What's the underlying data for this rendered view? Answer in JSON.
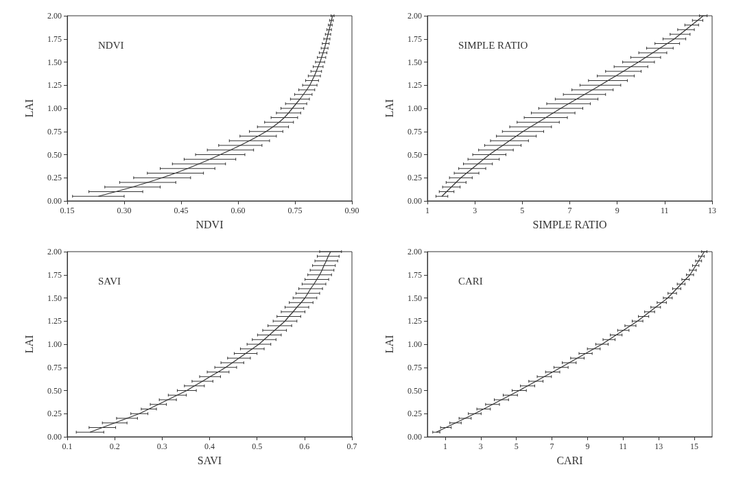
{
  "chart_data": [
    {
      "type": "line",
      "title": "NDVI",
      "xlabel": "NDVI",
      "ylabel": "LAI",
      "color": "#333333",
      "x": [
        0.232,
        0.278,
        0.322,
        0.362,
        0.4,
        0.435,
        0.467,
        0.497,
        0.526,
        0.553,
        0.58,
        0.606,
        0.63,
        0.653,
        0.674,
        0.692,
        0.708,
        0.722,
        0.733,
        0.743,
        0.753,
        0.763,
        0.772,
        0.781,
        0.789,
        0.795,
        0.801,
        0.806,
        0.811,
        0.816,
        0.82,
        0.824,
        0.828,
        0.831,
        0.834,
        0.837,
        0.84,
        0.843,
        0.846,
        0.849
      ],
      "values": [
        0.05,
        0.1,
        0.15,
        0.2,
        0.25,
        0.3,
        0.35,
        0.4,
        0.45,
        0.5,
        0.55,
        0.6,
        0.65,
        0.7,
        0.75,
        0.8,
        0.85,
        0.9,
        0.95,
        1.0,
        1.05,
        1.1,
        1.15,
        1.2,
        1.25,
        1.3,
        1.35,
        1.4,
        1.45,
        1.5,
        1.55,
        1.6,
        1.65,
        1.7,
        1.75,
        1.8,
        1.85,
        1.9,
        1.95,
        2.0
      ],
      "xerrors": [
        0.068,
        0.071,
        0.073,
        0.074,
        0.075,
        0.074,
        0.072,
        0.07,
        0.068,
        0.065,
        0.061,
        0.057,
        0.053,
        0.048,
        0.044,
        0.041,
        0.038,
        0.035,
        0.032,
        0.03,
        0.028,
        0.025,
        0.023,
        0.021,
        0.019,
        0.017,
        0.016,
        0.014,
        0.013,
        0.012,
        0.011,
        0.01,
        0.009,
        0.009,
        0.008,
        0.007,
        0.006,
        0.005,
        0.005,
        0.004
      ],
      "xlim": [
        0.15,
        0.9
      ],
      "xticks": [
        0.15,
        {
          "value": 0.3,
          "label": "0.30"
        },
        0.45,
        {
          "value": 0.6,
          "label": "0.60"
        },
        0.75,
        {
          "value": 0.9,
          "label": "0.90"
        }
      ],
      "ylim": [
        0,
        2
      ],
      "yticks": [
        {
          "value": 0,
          "label": "0.00"
        },
        0.25,
        {
          "value": 0.5,
          "label": "0.50"
        },
        0.75,
        {
          "value": 1,
          "label": "1.00"
        },
        1.25,
        {
          "value": 1.5,
          "label": "1.50"
        },
        1.75,
        {
          "value": 2,
          "label": "2.00"
        }
      ]
    },
    {
      "type": "line",
      "title": "SIMPLE RATIO",
      "xlabel": "SIMPLE RATIO",
      "ylabel": "LAI",
      "color": "#333333",
      "x": [
        1.61,
        1.81,
        2.01,
        2.21,
        2.41,
        2.65,
        2.89,
        3.13,
        3.37,
        3.61,
        3.89,
        4.18,
        4.46,
        4.75,
        5.03,
        5.35,
        5.67,
        5.99,
        6.3,
        6.62,
        6.95,
        7.29,
        7.62,
        7.96,
        8.29,
        8.61,
        8.94,
        9.26,
        9.58,
        9.9,
        10.2,
        10.5,
        10.8,
        11.11,
        11.41,
        11.65,
        11.9,
        12.14,
        12.39,
        12.63
      ],
      "values": [
        0.05,
        0.1,
        0.15,
        0.2,
        0.25,
        0.3,
        0.35,
        0.4,
        0.45,
        0.5,
        0.55,
        0.6,
        0.65,
        0.7,
        0.75,
        0.8,
        0.85,
        0.9,
        0.95,
        1.0,
        1.05,
        1.1,
        1.15,
        1.2,
        1.25,
        1.3,
        1.35,
        1.4,
        1.45,
        1.5,
        1.55,
        1.6,
        1.65,
        1.7,
        1.75,
        1.8,
        1.85,
        1.9,
        1.95,
        2.0
      ],
      "xerrors": [
        0.25,
        0.31,
        0.37,
        0.42,
        0.48,
        0.52,
        0.57,
        0.61,
        0.66,
        0.7,
        0.73,
        0.77,
        0.8,
        0.84,
        0.87,
        0.88,
        0.89,
        0.91,
        0.92,
        0.93,
        0.92,
        0.9,
        0.89,
        0.87,
        0.86,
        0.82,
        0.78,
        0.75,
        0.71,
        0.67,
        0.63,
        0.59,
        0.56,
        0.52,
        0.48,
        0.42,
        0.35,
        0.29,
        0.22,
        0.16
      ],
      "xlim": [
        1,
        13
      ],
      "xticks": [
        1,
        3,
        5,
        7,
        9,
        11,
        13
      ],
      "ylim": [
        0,
        2
      ],
      "yticks": [
        {
          "value": 0,
          "label": "0.00"
        },
        0.25,
        {
          "value": 0.5,
          "label": "0.50"
        },
        0.75,
        {
          "value": 1,
          "label": "1.00"
        },
        1.25,
        {
          "value": 1.5,
          "label": "1.50"
        },
        1.75,
        {
          "value": 2,
          "label": "2.00"
        }
      ]
    },
    {
      "type": "line",
      "title": "SAVI",
      "xlabel": "SAVI",
      "ylabel": "LAI",
      "color": "#333333",
      "x": [
        0.148,
        0.174,
        0.2,
        0.226,
        0.252,
        0.272,
        0.292,
        0.312,
        0.332,
        0.352,
        0.368,
        0.385,
        0.401,
        0.418,
        0.434,
        0.448,
        0.462,
        0.476,
        0.49,
        0.504,
        0.515,
        0.526,
        0.537,
        0.548,
        0.559,
        0.567,
        0.576,
        0.584,
        0.593,
        0.601,
        0.607,
        0.613,
        0.62,
        0.626,
        0.632,
        0.637,
        0.641,
        0.646,
        0.65,
        0.655
      ],
      "values": [
        0.05,
        0.1,
        0.15,
        0.2,
        0.25,
        0.3,
        0.35,
        0.4,
        0.45,
        0.5,
        0.55,
        0.6,
        0.65,
        0.7,
        0.75,
        0.8,
        0.85,
        0.9,
        0.95,
        1.0,
        1.05,
        1.1,
        1.15,
        1.2,
        1.25,
        1.3,
        1.35,
        1.4,
        1.45,
        1.5,
        1.55,
        1.6,
        1.65,
        1.7,
        1.75,
        1.8,
        1.85,
        1.9,
        1.95,
        2.0
      ],
      "xerrors": [
        0.029,
        0.028,
        0.026,
        0.022,
        0.018,
        0.016,
        0.017,
        0.018,
        0.019,
        0.02,
        0.021,
        0.022,
        0.022,
        0.023,
        0.023,
        0.024,
        0.024,
        0.024,
        0.025,
        0.025,
        0.025,
        0.025,
        0.025,
        0.025,
        0.025,
        0.025,
        0.025,
        0.025,
        0.025,
        0.025,
        0.025,
        0.025,
        0.025,
        0.025,
        0.025,
        0.025,
        0.024,
        0.024,
        0.023,
        0.023
      ],
      "xlim": [
        0.1,
        0.7
      ],
      "xticks": [
        0.1,
        0.2,
        0.3,
        0.4,
        0.5,
        0.6,
        0.7
      ],
      "ylim": [
        0,
        2
      ],
      "yticks": [
        {
          "value": 0,
          "label": "0.00"
        },
        0.25,
        {
          "value": 0.5,
          "label": "0.50"
        },
        0.75,
        {
          "value": 1,
          "label": "1.00"
        },
        1.25,
        {
          "value": 1.5,
          "label": "1.50"
        },
        1.75,
        {
          "value": 2,
          "label": "2.00"
        }
      ]
    },
    {
      "type": "line",
      "title": "CARI",
      "xlabel": "CARI",
      "ylabel": "LAI",
      "color": "#333333",
      "x": [
        0.5,
        1.04,
        1.58,
        2.12,
        2.66,
        3.16,
        3.66,
        4.16,
        4.66,
        5.16,
        5.63,
        6.1,
        6.57,
        7.04,
        7.51,
        7.97,
        8.43,
        8.89,
        9.35,
        9.81,
        10.21,
        10.61,
        11.01,
        11.41,
        11.81,
        12.15,
        12.49,
        12.83,
        13.17,
        13.51,
        13.76,
        14.01,
        14.26,
        14.51,
        14.76,
        14.92,
        15.08,
        15.24,
        15.4,
        15.56
      ],
      "values": [
        0.05,
        0.1,
        0.15,
        0.2,
        0.25,
        0.3,
        0.35,
        0.4,
        0.45,
        0.5,
        0.55,
        0.6,
        0.65,
        0.7,
        0.75,
        0.8,
        0.85,
        0.9,
        0.95,
        1.0,
        1.05,
        1.1,
        1.15,
        1.2,
        1.25,
        1.3,
        1.35,
        1.4,
        1.45,
        1.5,
        1.55,
        1.6,
        1.65,
        1.7,
        1.75,
        1.8,
        1.85,
        1.9,
        1.95,
        2.0
      ],
      "xerrors": [
        0.2,
        0.3,
        0.32,
        0.34,
        0.36,
        0.38,
        0.39,
        0.4,
        0.4,
        0.4,
        0.4,
        0.4,
        0.4,
        0.4,
        0.4,
        0.39,
        0.38,
        0.37,
        0.36,
        0.35,
        0.34,
        0.33,
        0.32,
        0.31,
        0.3,
        0.29,
        0.28,
        0.27,
        0.26,
        0.25,
        0.24,
        0.23,
        0.22,
        0.21,
        0.2,
        0.19,
        0.18,
        0.17,
        0.16,
        0.15
      ],
      "xlim": [
        0,
        16
      ],
      "xticks": [
        1,
        3,
        5,
        7,
        9,
        11,
        13,
        15
      ],
      "ylim": [
        0,
        2
      ],
      "yticks": [
        {
          "value": 0,
          "label": "0.00"
        },
        0.25,
        {
          "value": 0.5,
          "label": "0.50"
        },
        0.75,
        {
          "value": 1,
          "label": "1.00"
        },
        1.25,
        {
          "value": 1.5,
          "label": "1.50"
        },
        1.75,
        {
          "value": 2,
          "label": "2.00"
        }
      ]
    }
  ]
}
